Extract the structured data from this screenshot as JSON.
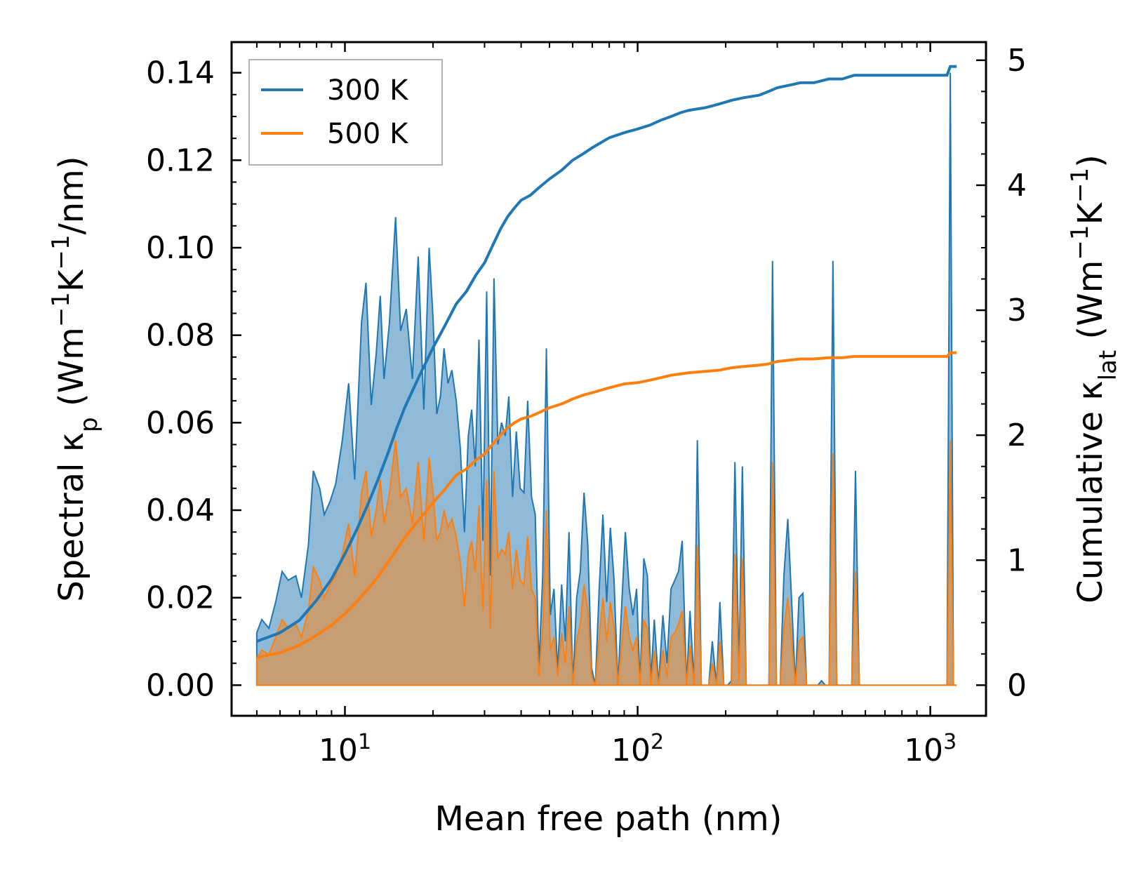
{
  "chart_data": {
    "type": "line",
    "title": "",
    "xlabel": "Mean free path (nm)",
    "xscale": "log",
    "xlim": [
      4.1,
      1550
    ],
    "ylabel_left": {
      "main": "Spectral κ",
      "sub": "p",
      "unit_open": " (Wm",
      "exp1": "−1",
      "unit_mid": "K",
      "exp2": "−1",
      "unit_close": "/nm)"
    },
    "ylabel_right": {
      "main": "Cumulative κ",
      "sub": "lat",
      "unit_open": " (Wm",
      "exp1": "−1",
      "unit_mid": "K",
      "exp2": "−1",
      "unit_close": ")"
    },
    "ylim_left": [
      -0.007,
      0.147
    ],
    "ylim_right": [
      -0.245,
      5.145
    ],
    "left_ticks": [
      "0.00",
      "0.02",
      "0.04",
      "0.06",
      "0.08",
      "0.10",
      "0.12",
      "0.14"
    ],
    "left_tick_values": [
      0,
      0.02,
      0.04,
      0.06,
      0.08,
      0.1,
      0.12,
      0.14
    ],
    "right_ticks": [
      "0",
      "1",
      "2",
      "3",
      "4",
      "5"
    ],
    "right_tick_values": [
      0,
      1,
      2,
      3,
      4,
      5
    ],
    "x_ticks": [
      {
        "value": 10,
        "base": "10",
        "exp": "1"
      },
      {
        "value": 100,
        "base": "10",
        "exp": "2"
      },
      {
        "value": 1000,
        "base": "10",
        "exp": "3"
      }
    ],
    "legend": {
      "position": "top-left",
      "entries": [
        "300 K",
        "500 K"
      ]
    },
    "colors": {
      "300K": "#1f77b4",
      "500K": "#ff7f0e",
      "fill300": "#1f77b4",
      "fill500": "#ff7f0e"
    },
    "spectral_300K": {
      "x": [
        5.0,
        5.2,
        5.5,
        5.8,
        6.1,
        6.4,
        6.8,
        7.1,
        7.5,
        7.8,
        8.2,
        8.5,
        8.9,
        9.3,
        9.8,
        10.3,
        10.8,
        11.4,
        11.8,
        12.3,
        12.8,
        13.2,
        13.6,
        14.2,
        14.9,
        15.5,
        16.2,
        17.0,
        17.8,
        18.6,
        19.4,
        20.0,
        20.6,
        21.2,
        21.8,
        22.5,
        23.2,
        24.0,
        24.8,
        25.6,
        26.4,
        27.1,
        27.9,
        28.7,
        29.6,
        30.5,
        31.4,
        32.3,
        33.3,
        34.3,
        35.3,
        36.3,
        37.4,
        38.5,
        39.7,
        40.9,
        42.1,
        43.4,
        44.7,
        46.0,
        47.4,
        48.8,
        50.3,
        51.8,
        53.3,
        55.0,
        56.6,
        58.3,
        60.1,
        61.9,
        63.7,
        65.6,
        67.6,
        69.6,
        71.7,
        73.9,
        76.1,
        78.4,
        80.7,
        83.1,
        85.6,
        88.2,
        90.8,
        93.6,
        96.4,
        99.2,
        102,
        105,
        108,
        111,
        114,
        118,
        122,
        126,
        130,
        134,
        138,
        142,
        147,
        151,
        156,
        160,
        165,
        170,
        175,
        180,
        186,
        191,
        197,
        203,
        209,
        215,
        222,
        228,
        235,
        242,
        250,
        257,
        265,
        273,
        281,
        289,
        298,
        307,
        316,
        326,
        336,
        346,
        356,
        367,
        378,
        389,
        401,
        413,
        425,
        438,
        451,
        465,
        479,
        493,
        508,
        523,
        539,
        555,
        572,
        1140,
        1170,
        1200,
        1230
      ],
      "y": [
        0.012,
        0.015,
        0.013,
        0.019,
        0.026,
        0.024,
        0.025,
        0.02,
        0.032,
        0.049,
        0.045,
        0.039,
        0.042,
        0.046,
        0.056,
        0.069,
        0.047,
        0.083,
        0.092,
        0.064,
        0.076,
        0.089,
        0.07,
        0.083,
        0.107,
        0.081,
        0.086,
        0.07,
        0.098,
        0.063,
        0.1,
        0.084,
        0.062,
        0.066,
        0.077,
        0.069,
        0.072,
        0.065,
        0.054,
        0.035,
        0.057,
        0.063,
        0.05,
        0.079,
        0.033,
        0.09,
        0.025,
        0.093,
        0.055,
        0.06,
        0.057,
        0.066,
        0.043,
        0.058,
        0.045,
        0.044,
        0.065,
        0.043,
        0.039,
        0.004,
        0.025,
        0.077,
        0.016,
        0.022,
        0.003,
        0.023,
        0.01,
        0.035,
        0.0,
        0.02,
        0.026,
        0.044,
        0.032,
        0.004,
        0.0,
        0.022,
        0.039,
        0.019,
        0.036,
        0.024,
        0.0,
        0.018,
        0.035,
        0.022,
        0.016,
        0.022,
        0.0,
        0.029,
        0.025,
        0.001,
        0.015,
        0.0,
        0.016,
        0.005,
        0.022,
        0.024,
        0.026,
        0.033,
        0.0,
        0.017,
        0.0,
        0.056,
        0.0,
        0.0,
        0.0,
        0.01,
        0.0,
        0.019,
        0.0,
        0.0,
        0.001,
        0.051,
        0.003,
        0.05,
        0.0,
        0.0,
        0.0,
        0.0,
        0.0,
        0.0,
        0.0,
        0.097,
        0.0,
        0.0,
        0.025,
        0.038,
        0.019,
        0.0,
        0.02,
        0.021,
        0.0,
        0.0,
        0.0,
        0.0,
        0.001,
        0.0,
        0.0,
        0.097,
        0.0,
        0.0,
        0.0,
        0.0,
        0.0,
        0.049,
        0.0,
        0.0,
        0.14,
        0.0,
        0.0
      ]
    },
    "spectral_500K": {
      "x": [
        5.0,
        5.2,
        5.5,
        5.8,
        6.1,
        6.4,
        6.8,
        7.1,
        7.5,
        7.8,
        8.2,
        8.5,
        8.9,
        9.3,
        9.8,
        10.3,
        10.8,
        11.4,
        11.8,
        12.3,
        12.8,
        13.2,
        13.6,
        14.2,
        14.9,
        15.5,
        16.2,
        17.0,
        17.8,
        18.6,
        19.4,
        20.0,
        20.6,
        21.2,
        21.8,
        22.5,
        23.2,
        24.0,
        24.8,
        25.6,
        26.4,
        27.1,
        27.9,
        28.7,
        29.6,
        30.5,
        31.4,
        32.3,
        33.3,
        34.3,
        35.3,
        36.3,
        37.4,
        38.5,
        39.7,
        40.9,
        42.1,
        43.4,
        44.7,
        46.0,
        47.4,
        48.8,
        50.3,
        51.8,
        53.3,
        55.0,
        56.6,
        58.3,
        60.1,
        61.9,
        63.7,
        65.6,
        67.6,
        69.6,
        71.7,
        73.9,
        76.1,
        78.4,
        80.7,
        83.1,
        85.6,
        88.2,
        90.8,
        93.6,
        96.4,
        99.2,
        102,
        105,
        108,
        111,
        114,
        118,
        122,
        126,
        130,
        134,
        138,
        142,
        147,
        151,
        156,
        160,
        165,
        170,
        175,
        180,
        186,
        191,
        197,
        203,
        209,
        215,
        222,
        228,
        235,
        242,
        250,
        257,
        265,
        273,
        281,
        289,
        298,
        307,
        316,
        326,
        336,
        346,
        356,
        367,
        378,
        389,
        401,
        413,
        425,
        438,
        451,
        465,
        479,
        493,
        508,
        523,
        539,
        555,
        572,
        1140,
        1170,
        1200,
        1230
      ],
      "y": [
        0.006,
        0.008,
        0.007,
        0.011,
        0.015,
        0.013,
        0.014,
        0.011,
        0.017,
        0.027,
        0.024,
        0.02,
        0.023,
        0.025,
        0.03,
        0.037,
        0.025,
        0.044,
        0.049,
        0.034,
        0.04,
        0.047,
        0.037,
        0.044,
        0.056,
        0.043,
        0.045,
        0.037,
        0.051,
        0.033,
        0.052,
        0.044,
        0.033,
        0.035,
        0.04,
        0.036,
        0.038,
        0.034,
        0.028,
        0.018,
        0.03,
        0.033,
        0.026,
        0.041,
        0.017,
        0.047,
        0.013,
        0.049,
        0.029,
        0.031,
        0.03,
        0.035,
        0.022,
        0.031,
        0.024,
        0.023,
        0.034,
        0.022,
        0.02,
        0.002,
        0.013,
        0.04,
        0.008,
        0.011,
        0.002,
        0.012,
        0.005,
        0.018,
        0.0,
        0.01,
        0.014,
        0.023,
        0.017,
        0.002,
        0.0,
        0.011,
        0.02,
        0.01,
        0.019,
        0.013,
        0.0,
        0.009,
        0.018,
        0.011,
        0.008,
        0.011,
        0.0,
        0.015,
        0.013,
        0.0,
        0.008,
        0.0,
        0.008,
        0.002,
        0.011,
        0.012,
        0.014,
        0.017,
        0.0,
        0.009,
        0.0,
        0.032,
        0.0,
        0.0,
        0.0,
        0.005,
        0.0,
        0.01,
        0.0,
        0.0,
        0.0,
        0.03,
        0.001,
        0.029,
        0.0,
        0.0,
        0.0,
        0.0,
        0.0,
        0.0,
        0.0,
        0.051,
        0.0,
        0.0,
        0.013,
        0.02,
        0.01,
        0.0,
        0.01,
        0.011,
        0.0,
        0.0,
        0.0,
        0.0,
        0.0,
        0.0,
        0.0,
        0.053,
        0.0,
        0.0,
        0.0,
        0.0,
        0.0,
        0.026,
        0.0,
        0.0,
        0.056,
        0.0,
        0.0
      ]
    },
    "cumulative_300K": {
      "x": [
        5.0,
        6.0,
        7.0,
        8.0,
        9.0,
        10.0,
        11.0,
        12.0,
        13.0,
        14.0,
        15.0,
        16.0,
        18.0,
        20.0,
        22.0,
        24.0,
        26.0,
        28.0,
        30.0,
        32.0,
        34.0,
        36.0,
        38.0,
        40.0,
        43.0,
        46.0,
        50.0,
        55.0,
        60.0,
        65.0,
        70.0,
        80.0,
        90.0,
        100,
        110,
        120,
        130,
        140,
        150,
        170,
        190,
        210,
        230,
        260,
        280,
        300,
        330,
        360,
        400,
        450,
        500,
        550,
        600,
        800,
        1100,
        1140,
        1170,
        1230
      ],
      "y": [
        0.35,
        0.42,
        0.52,
        0.68,
        0.85,
        1.05,
        1.25,
        1.45,
        1.65,
        1.85,
        2.05,
        2.22,
        2.48,
        2.7,
        2.88,
        3.05,
        3.15,
        3.28,
        3.38,
        3.52,
        3.65,
        3.75,
        3.82,
        3.88,
        3.92,
        3.98,
        4.05,
        4.12,
        4.2,
        4.25,
        4.3,
        4.38,
        4.42,
        4.45,
        4.48,
        4.52,
        4.55,
        4.58,
        4.6,
        4.62,
        4.65,
        4.68,
        4.7,
        4.72,
        4.75,
        4.78,
        4.8,
        4.82,
        4.82,
        4.85,
        4.85,
        4.88,
        4.88,
        4.88,
        4.88,
        4.88,
        4.95,
        4.95
      ]
    },
    "cumulative_500K": {
      "x": [
        5.0,
        6.0,
        7.0,
        8.0,
        9.0,
        10.0,
        11.0,
        12.0,
        13.0,
        14.0,
        15.0,
        16.0,
        18.0,
        20.0,
        22.0,
        24.0,
        26.0,
        28.0,
        30.0,
        32.0,
        34.0,
        36.0,
        38.0,
        40.0,
        43.0,
        46.0,
        50.0,
        55.0,
        60.0,
        65.0,
        70.0,
        80.0,
        90.0,
        100,
        110,
        120,
        130,
        140,
        150,
        170,
        190,
        210,
        230,
        260,
        280,
        300,
        330,
        360,
        400,
        450,
        500,
        550,
        600,
        800,
        1100,
        1140,
        1170,
        1230
      ],
      "y": [
        0.22,
        0.26,
        0.32,
        0.4,
        0.48,
        0.57,
        0.67,
        0.77,
        0.87,
        0.98,
        1.08,
        1.18,
        1.33,
        1.46,
        1.57,
        1.68,
        1.73,
        1.8,
        1.85,
        1.93,
        2.0,
        2.06,
        2.1,
        2.13,
        2.15,
        2.18,
        2.22,
        2.25,
        2.29,
        2.32,
        2.34,
        2.38,
        2.41,
        2.42,
        2.44,
        2.46,
        2.48,
        2.49,
        2.5,
        2.51,
        2.52,
        2.54,
        2.55,
        2.56,
        2.57,
        2.59,
        2.6,
        2.61,
        2.61,
        2.62,
        2.62,
        2.63,
        2.63,
        2.63,
        2.63,
        2.63,
        2.66,
        2.66
      ]
    }
  }
}
